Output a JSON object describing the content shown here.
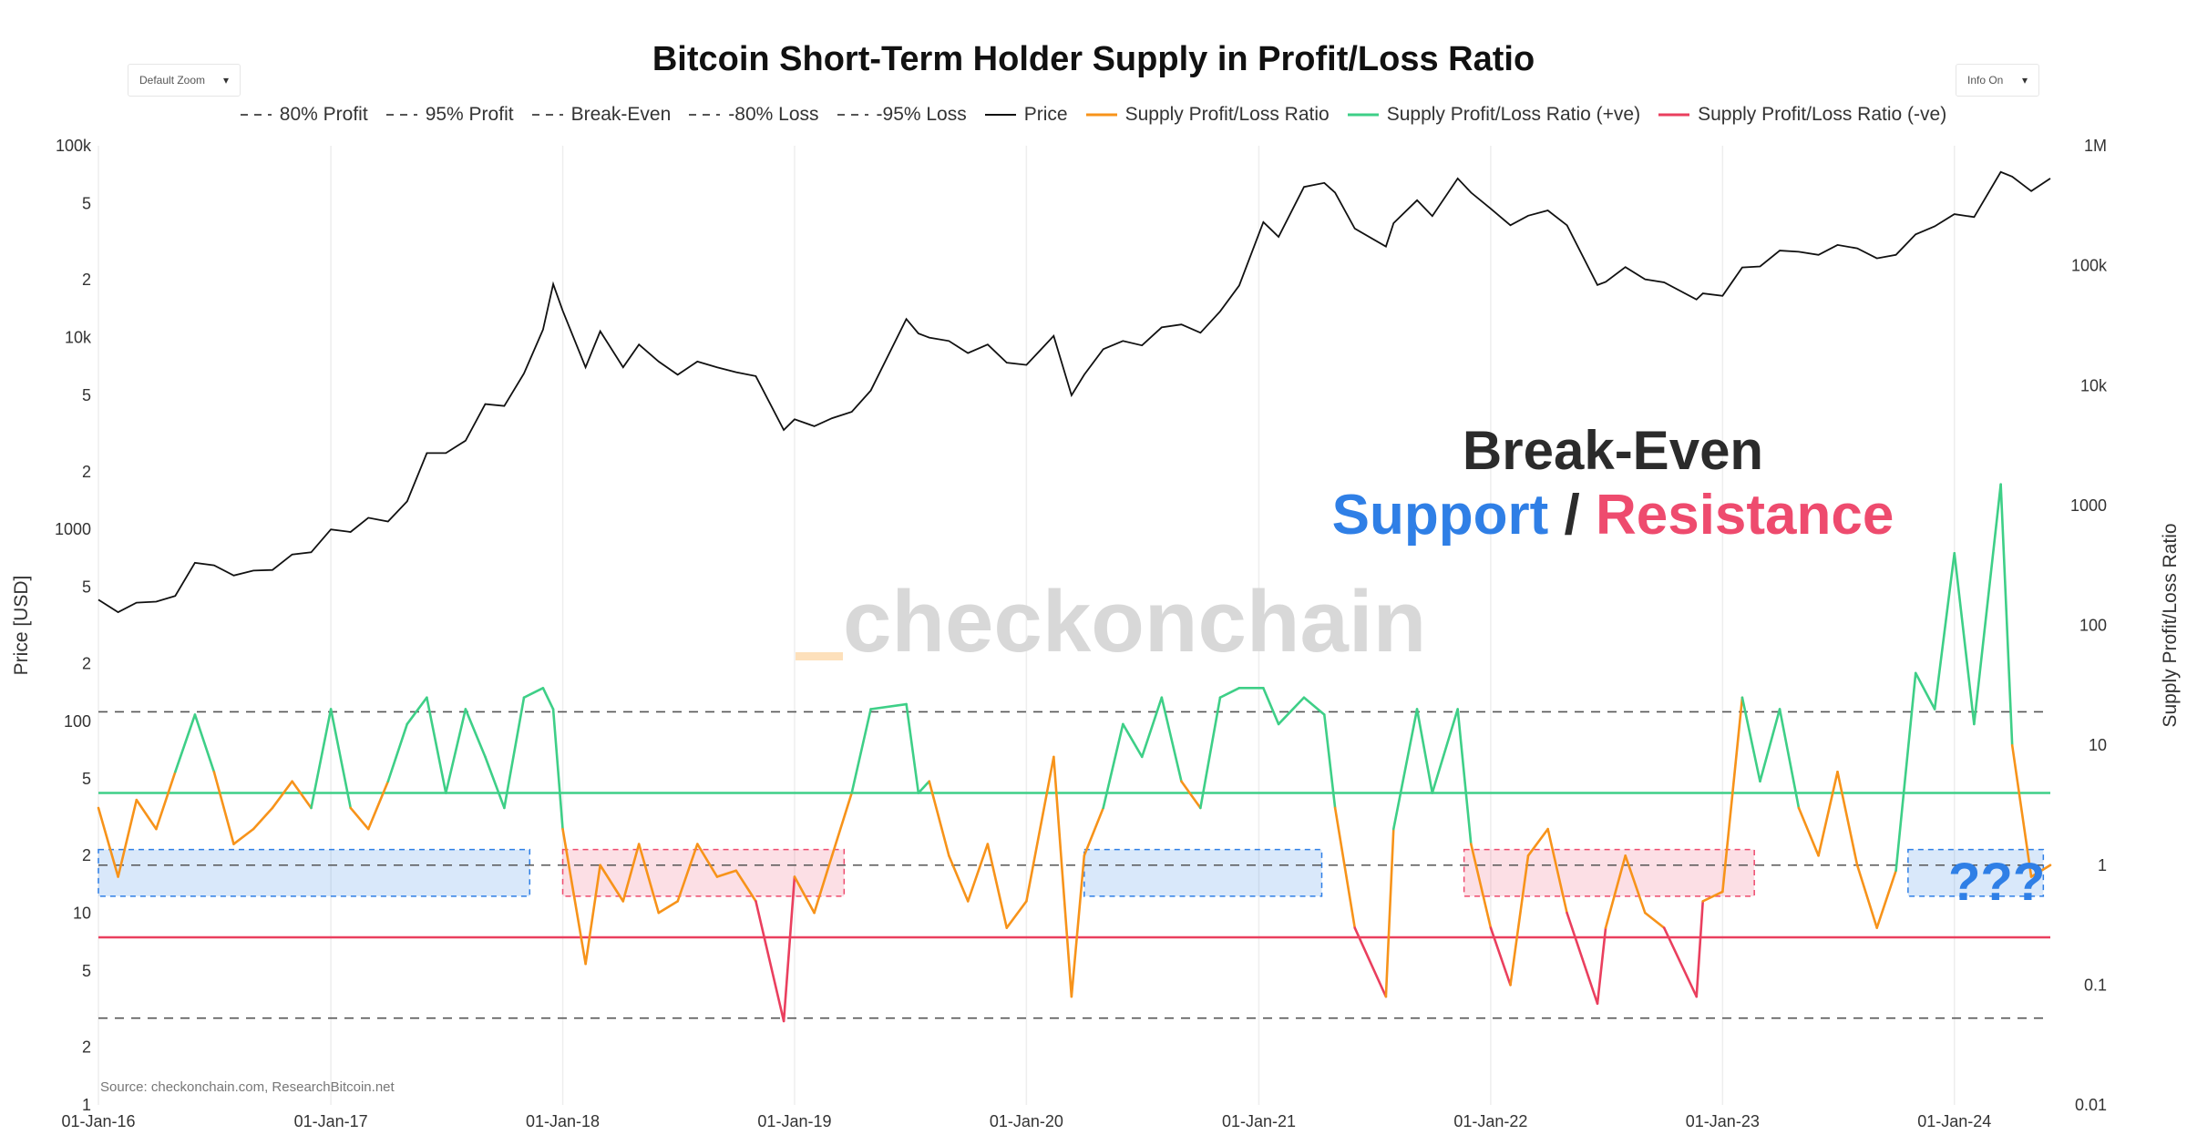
{
  "title": "Bitcoin Short-Term Holder Supply in Profit/Loss Ratio",
  "controls": {
    "zoom_label": "Default Zoom",
    "info_label": "Info On"
  },
  "legend": [
    {
      "name": "80% Profit",
      "style": "dash",
      "color": "#555555"
    },
    {
      "name": "95% Profit",
      "style": "dash",
      "color": "#555555"
    },
    {
      "name": "Break-Even",
      "style": "dash",
      "color": "#555555"
    },
    {
      "name": "-80% Loss",
      "style": "dash",
      "color": "#555555"
    },
    {
      "name": "-95% Loss",
      "style": "dash",
      "color": "#555555"
    },
    {
      "name": "Price",
      "style": "solid",
      "color": "#111111"
    },
    {
      "name": "Supply Profit/Loss Ratio",
      "style": "solid",
      "color": "#f7931a"
    },
    {
      "name": "Supply Profit/Loss Ratio (+ve)",
      "style": "solid",
      "color": "#3ecf87"
    },
    {
      "name": "Supply Profit/Loss Ratio (-ve)",
      "style": "solid",
      "color": "#ea3f5e"
    }
  ],
  "annotations": {
    "headline": "Break-Even",
    "support": "Support",
    "separator": "/",
    "resistance": "Resistance",
    "question": "???",
    "watermark": "checkonchain",
    "source": "Source: checkonchain.com, ResearchBitcoin.net"
  },
  "chart_data": {
    "type": "line",
    "title": "Bitcoin Short-Term Holder Supply in Profit/Loss Ratio",
    "x_range": [
      "2016-01-01",
      "2024-05-31"
    ],
    "x_ticks": [
      "01-Jan-16",
      "01-Jan-17",
      "01-Jan-18",
      "01-Jan-19",
      "01-Jan-20",
      "01-Jan-21",
      "01-Jan-22",
      "01-Jan-23",
      "01-Jan-24"
    ],
    "y_left": {
      "label": "Price [USD]",
      "scale": "log",
      "range": [
        1,
        100000
      ],
      "ticks": [
        "1",
        "2",
        "5",
        "10",
        "2",
        "5",
        "100",
        "2",
        "5",
        "1000",
        "2",
        "5",
        "10k",
        "2",
        "5",
        "100k"
      ]
    },
    "y_right": {
      "label": "Supply Profit/Loss Ratio",
      "scale": "log",
      "range": [
        0.01,
        1000000
      ],
      "ticks": [
        "0.01",
        "0.1",
        "1",
        "10",
        "100",
        "1000",
        "10k",
        "100k",
        "1M"
      ]
    },
    "reference_lines": [
      {
        "name": "95% Profit",
        "value": 19,
        "color": "#555555",
        "style": "dash"
      },
      {
        "name": "80% Profit",
        "value": 4,
        "color": "#555555",
        "style": "dash"
      },
      {
        "name": "Break-Even",
        "value": 1,
        "color": "#555555",
        "style": "dash"
      },
      {
        "name": "-80% Loss",
        "value": 0.25,
        "color": "#555555",
        "style": "dash"
      },
      {
        "name": "-95% Loss",
        "value": 0.053,
        "color": "#555555",
        "style": "dash"
      },
      {
        "name": "Supply Profit/Loss Ratio (+ve)",
        "value": 4,
        "color": "#3ecf87",
        "style": "solid"
      },
      {
        "name": "Supply Profit/Loss Ratio (-ve)",
        "value": 0.25,
        "color": "#ea3f5e",
        "style": "solid"
      }
    ],
    "highlight_zones": [
      {
        "start": "2016-01-01",
        "end": "2017-11-10",
        "low": 0.55,
        "high": 1.35,
        "kind": "support",
        "color": "#2f7fe6"
      },
      {
        "start": "2018-01-01",
        "end": "2019-03-20",
        "low": 0.55,
        "high": 1.35,
        "kind": "resistance",
        "color": "#ee4b6e"
      },
      {
        "start": "2020-04-01",
        "end": "2021-04-10",
        "low": 0.55,
        "high": 1.35,
        "kind": "support",
        "color": "#2f7fe6"
      },
      {
        "start": "2021-11-20",
        "end": "2023-02-20",
        "low": 0.55,
        "high": 1.35,
        "kind": "resistance",
        "color": "#ee4b6e"
      },
      {
        "start": "2023-10-20",
        "end": "2024-05-20",
        "low": 0.55,
        "high": 1.35,
        "kind": "support",
        "color": "#2f7fe6"
      }
    ],
    "series": [
      {
        "name": "Price",
        "axis": "left",
        "color": "#111111",
        "x": [
          "2016-01-01",
          "2016-02-01",
          "2016-03-01",
          "2016-04-01",
          "2016-05-01",
          "2016-06-01",
          "2016-07-01",
          "2016-08-01",
          "2016-09-01",
          "2016-10-01",
          "2016-11-01",
          "2016-12-01",
          "2017-01-01",
          "2017-02-01",
          "2017-03-01",
          "2017-04-01",
          "2017-05-01",
          "2017-06-01",
          "2017-07-01",
          "2017-08-01",
          "2017-09-01",
          "2017-10-01",
          "2017-11-01",
          "2017-12-01",
          "2017-12-17",
          "2018-01-01",
          "2018-02-06",
          "2018-03-01",
          "2018-04-06",
          "2018-05-01",
          "2018-06-01",
          "2018-07-01",
          "2018-08-01",
          "2018-09-01",
          "2018-10-01",
          "2018-11-01",
          "2018-12-15",
          "2019-01-01",
          "2019-02-01",
          "2019-03-01",
          "2019-04-01",
          "2019-05-01",
          "2019-06-26",
          "2019-07-15",
          "2019-08-01",
          "2019-09-01",
          "2019-10-01",
          "2019-11-01",
          "2019-12-01",
          "2020-01-01",
          "2020-02-13",
          "2020-03-12",
          "2020-04-01",
          "2020-05-01",
          "2020-06-01",
          "2020-07-01",
          "2020-08-01",
          "2020-09-01",
          "2020-10-01",
          "2020-11-01",
          "2020-12-01",
          "2021-01-08",
          "2021-02-01",
          "2021-03-13",
          "2021-04-14",
          "2021-05-01",
          "2021-06-01",
          "2021-07-20",
          "2021-08-01",
          "2021-09-07",
          "2021-10-01",
          "2021-11-10",
          "2021-12-01",
          "2022-01-01",
          "2022-02-01",
          "2022-03-01",
          "2022-04-01",
          "2022-05-01",
          "2022-06-18",
          "2022-07-01",
          "2022-08-01",
          "2022-09-01",
          "2022-10-01",
          "2022-11-21",
          "2022-12-01",
          "2023-01-01",
          "2023-02-01",
          "2023-03-01",
          "2023-04-01",
          "2023-05-01",
          "2023-06-01",
          "2023-07-01",
          "2023-08-01",
          "2023-09-01",
          "2023-10-01",
          "2023-11-01",
          "2023-12-01",
          "2024-01-01",
          "2024-02-01",
          "2024-03-14",
          "2024-04-01",
          "2024-05-01",
          "2024-05-31"
        ],
        "values": [
          430,
          370,
          415,
          420,
          450,
          670,
          650,
          575,
          610,
          615,
          740,
          760,
          1000,
          970,
          1150,
          1100,
          1400,
          2500,
          2500,
          2900,
          4500,
          4400,
          6500,
          11000,
          19000,
          13800,
          7000,
          10800,
          7000,
          9200,
          7500,
          6400,
          7500,
          7000,
          6600,
          6300,
          3300,
          3750,
          3450,
          3800,
          4100,
          5300,
          12500,
          10500,
          10000,
          9600,
          8300,
          9200,
          7400,
          7200,
          10200,
          5000,
          6400,
          8700,
          9600,
          9100,
          11300,
          11700,
          10600,
          13700,
          18700,
          40000,
          33500,
          61000,
          64000,
          57000,
          37000,
          29800,
          39500,
          52000,
          43000,
          67500,
          57000,
          47000,
          38500,
          43200,
          46000,
          38500,
          18800,
          19500,
          23300,
          20100,
          19400,
          15800,
          17000,
          16500,
          23200,
          23500,
          28400,
          28000,
          27000,
          30400,
          29200,
          25900,
          27000,
          34500,
          38000,
          44000,
          42500,
          73000,
          69000,
          58000,
          67500
        ]
      },
      {
        "name": "Supply Profit/Loss Ratio",
        "axis": "right",
        "color": "#f7931a",
        "x": [
          "2016-01-01",
          "2016-02-01",
          "2016-03-01",
          "2016-04-01",
          "2016-05-01",
          "2016-06-01",
          "2016-07-01",
          "2016-08-01",
          "2016-09-01",
          "2016-10-01",
          "2016-11-01",
          "2016-12-01",
          "2017-01-01",
          "2017-02-01",
          "2017-03-01",
          "2017-04-01",
          "2017-05-01",
          "2017-06-01",
          "2017-07-01",
          "2017-08-01",
          "2017-09-01",
          "2017-10-01",
          "2017-11-01",
          "2017-12-01",
          "2017-12-17",
          "2018-01-01",
          "2018-02-06",
          "2018-03-01",
          "2018-04-06",
          "2018-05-01",
          "2018-06-01",
          "2018-07-01",
          "2018-08-01",
          "2018-09-01",
          "2018-10-01",
          "2018-11-01",
          "2018-12-15",
          "2019-01-01",
          "2019-02-01",
          "2019-03-01",
          "2019-04-01",
          "2019-05-01",
          "2019-06-26",
          "2019-07-15",
          "2019-08-01",
          "2019-09-01",
          "2019-10-01",
          "2019-11-01",
          "2019-12-01",
          "2020-01-01",
          "2020-02-13",
          "2020-03-12",
          "2020-04-01",
          "2020-05-01",
          "2020-06-01",
          "2020-07-01",
          "2020-08-01",
          "2020-09-01",
          "2020-10-01",
          "2020-11-01",
          "2020-12-01",
          "2021-01-08",
          "2021-02-01",
          "2021-03-13",
          "2021-04-14",
          "2021-05-01",
          "2021-06-01",
          "2021-07-20",
          "2021-08-01",
          "2021-09-07",
          "2021-10-01",
          "2021-11-10",
          "2021-12-01",
          "2022-01-01",
          "2022-02-01",
          "2022-03-01",
          "2022-04-01",
          "2022-05-01",
          "2022-06-18",
          "2022-07-01",
          "2022-08-01",
          "2022-09-01",
          "2022-10-01",
          "2022-11-21",
          "2022-12-01",
          "2023-01-01",
          "2023-02-01",
          "2023-03-01",
          "2023-04-01",
          "2023-05-01",
          "2023-06-01",
          "2023-07-01",
          "2023-08-01",
          "2023-09-01",
          "2023-10-01",
          "2023-11-01",
          "2023-12-01",
          "2024-01-01",
          "2024-02-01",
          "2024-03-14",
          "2024-04-01",
          "2024-05-01",
          "2024-05-31"
        ],
        "values": [
          3.0,
          0.8,
          3.5,
          2.0,
          6.0,
          18,
          6.0,
          1.5,
          2.0,
          3.0,
          5.0,
          3.0,
          20,
          3.0,
          2.0,
          5.0,
          15,
          25,
          4.0,
          20,
          8.0,
          3.0,
          25,
          30,
          20,
          2.0,
          0.15,
          1.0,
          0.5,
          1.5,
          0.4,
          0.5,
          1.5,
          0.8,
          0.9,
          0.5,
          0.05,
          0.8,
          0.4,
          1.2,
          4.0,
          20,
          22,
          4.0,
          5.0,
          1.2,
          0.5,
          1.5,
          0.3,
          0.5,
          8.0,
          0.08,
          1.2,
          3.0,
          15,
          8.0,
          25,
          5.0,
          3.0,
          25,
          30,
          30,
          15,
          25,
          18,
          3.0,
          0.3,
          0.08,
          2.0,
          20,
          4.0,
          20,
          1.5,
          0.3,
          0.1,
          1.2,
          2.0,
          0.4,
          0.07,
          0.3,
          1.2,
          0.4,
          0.3,
          0.08,
          0.5,
          0.6,
          25,
          5.0,
          20,
          3.0,
          1.2,
          6.0,
          1.0,
          0.3,
          0.9,
          40,
          20,
          400,
          15,
          1500,
          10,
          0.8,
          1.0
        ]
      }
    ]
  }
}
